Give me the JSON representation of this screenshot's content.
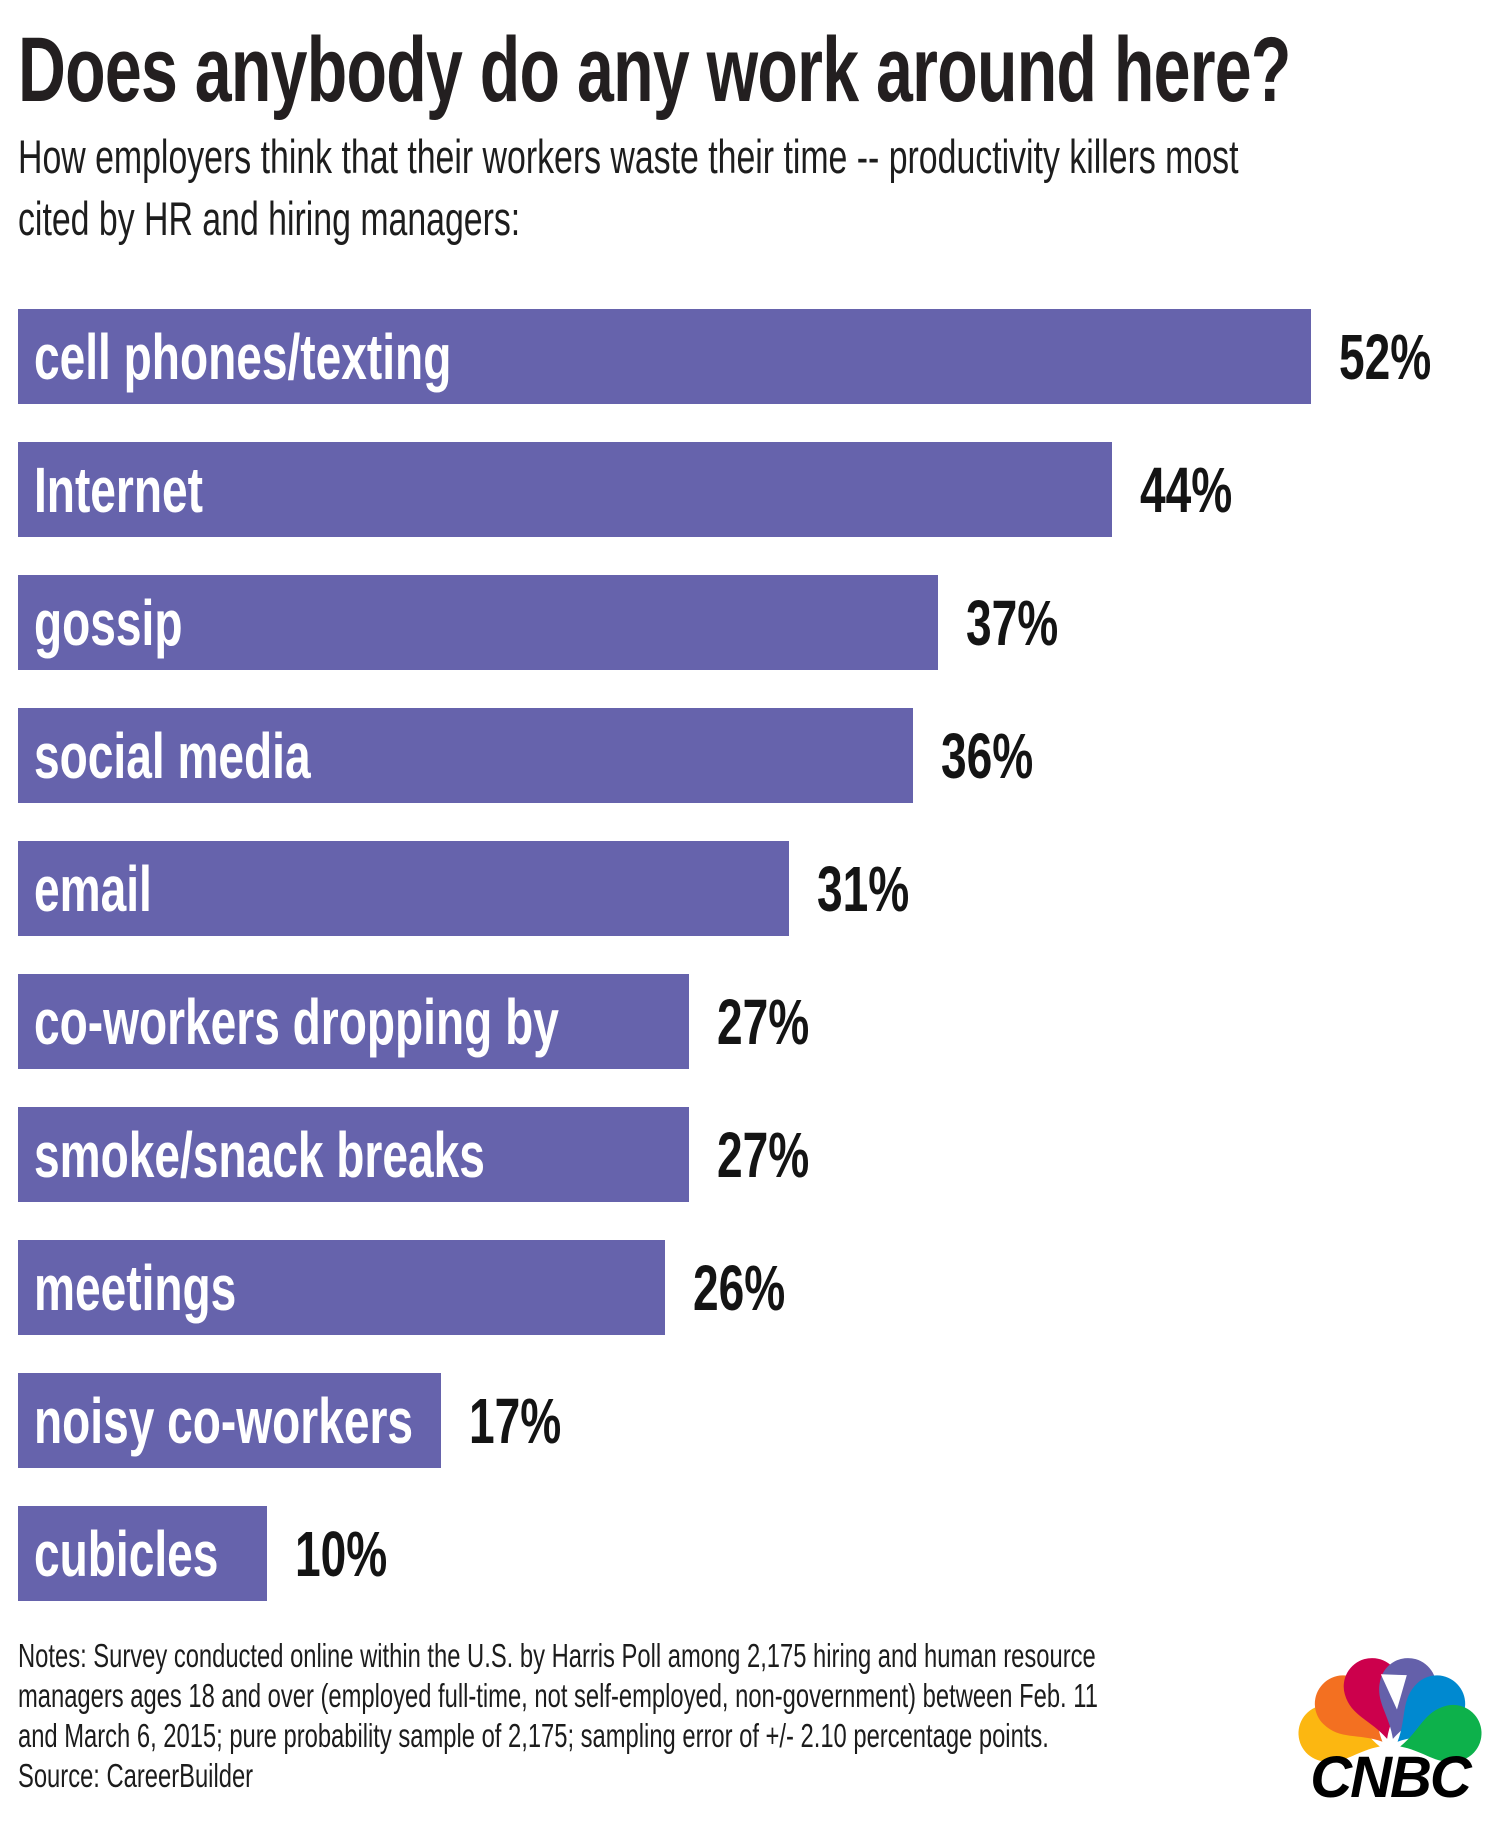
{
  "header": {
    "title": "Does anybody do any work around here?",
    "subtitle_lines": [
      "How employers think that their workers waste their time -- productivity killers most",
      "cited by HR and hiring managers:"
    ]
  },
  "chart_data": {
    "type": "bar",
    "orientation": "horizontal",
    "title": "Does anybody do any work around here?",
    "categories": [
      "cell phones/texting",
      "Internet",
      "gossip",
      "social media",
      "email",
      "co-workers dropping by",
      "smoke/snack breaks",
      "meetings",
      "noisy co-workers",
      "cubicles"
    ],
    "values": [
      52,
      44,
      37,
      36,
      31,
      27,
      27,
      26,
      17,
      10
    ],
    "value_suffix": "%",
    "xlim": [
      0,
      52
    ],
    "grid": false,
    "legend": "none",
    "bar_color": "#6663AC",
    "bar_label_color": "#ffffff",
    "value_label_color": "#141414"
  },
  "footer": {
    "notes_lines": [
      "Notes: Survey conducted online within the U.S. by Harris Poll among 2,175 hiring and human resource",
      "managers ages 18 and over (employed full-time, not self-employed, non-government) between Feb. 11",
      "and March 6, 2015; pure probability sample of 2,175; sampling error of +/- 2.10 percentage points.",
      "Source: CareerBuilder"
    ],
    "logo": {
      "name": "CNBC",
      "wordmark": "CNBC",
      "wordmark_color": "#000000",
      "feather_colors": [
        "#FCB711",
        "#F37021",
        "#CC004C",
        "#6460AA",
        "#0089D0",
        "#0DB14B"
      ]
    }
  }
}
